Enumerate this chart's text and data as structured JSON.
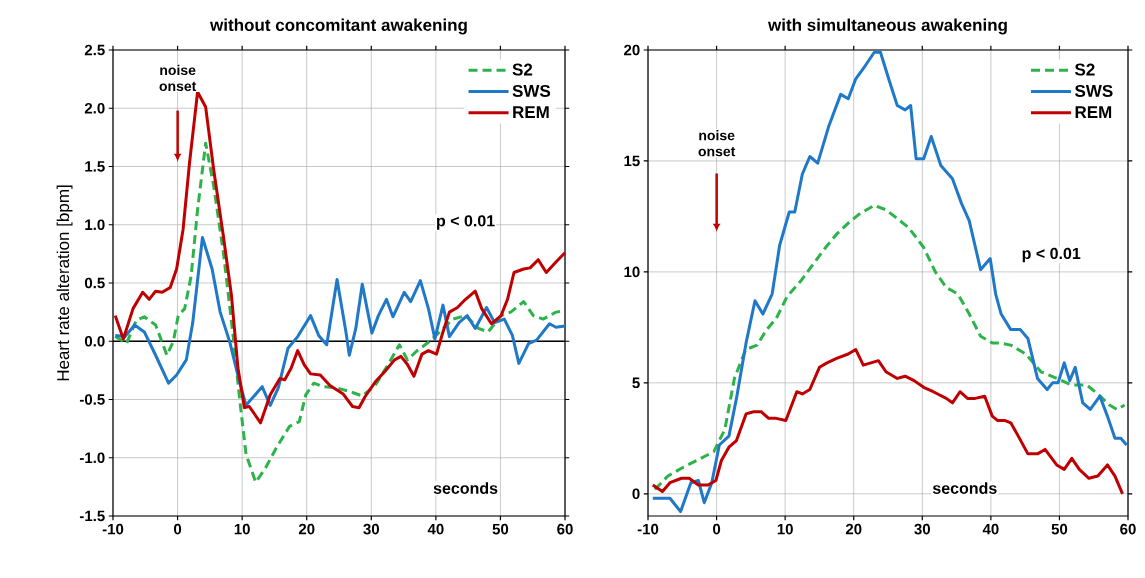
{
  "chart_data": [
    {
      "type": "line",
      "title": "without concomitant awakening",
      "ylabel": "Heart rate alteration [bpm]",
      "xlim": [
        -10,
        60
      ],
      "xticks": [
        -10,
        0,
        10,
        20,
        30,
        40,
        50,
        60
      ],
      "ylim": [
        -1.5,
        2.5
      ],
      "yticks": [
        {
          "value": -1.5,
          "label": "-1.5"
        },
        {
          "value": -1,
          "label": "-1.0"
        },
        {
          "value": -0.5,
          "label": "-0.5"
        },
        {
          "value": 0,
          "label": "0.0"
        },
        {
          "value": 0.5,
          "label": "0.5"
        },
        {
          "value": 1,
          "label": "1.0"
        },
        {
          "value": 1.5,
          "label": "1.5"
        },
        {
          "value": 2,
          "label": "2.0"
        },
        {
          "value": 2.5,
          "label": "2.5"
        }
      ],
      "grid": true,
      "legend": "top right",
      "marker": "none",
      "ref_lines": [
        {
          "axis": "y",
          "value": 0,
          "color": "#000000"
        }
      ],
      "annotations": [
        "noise onset",
        "p < 0.01",
        "seconds"
      ],
      "series": [
        {
          "name": "S2",
          "color": "#2db34a",
          "line_style": "dashed",
          "x": [
            -9.65,
            -7.9,
            -6.4,
            -5.15,
            -3.4,
            -1.65,
            -0.65,
            0.1,
            1.1,
            2.1,
            3.1,
            4.35,
            5.6,
            7.1,
            8.6,
            9.6,
            10.6,
            12.1,
            13.6,
            15.35,
            17.35,
            18.85,
            19.85,
            21.1,
            22.6,
            24.6,
            26.6,
            28.6,
            30.6,
            32.6,
            34.35,
            35.6,
            37.1,
            38.6,
            40.6,
            42.6,
            44.6,
            46.6,
            48.1,
            50.1,
            51.6,
            53.6,
            55.1,
            56.6,
            58.6,
            60
          ],
          "values": [
            0.04,
            -0.02,
            0.18,
            0.21,
            0.14,
            -0.12,
            0,
            0.22,
            0.28,
            0.56,
            1.13,
            1.7,
            1.33,
            0.76,
            0.05,
            -0.49,
            -0.97,
            -1.21,
            -1.09,
            -0.91,
            -0.73,
            -0.69,
            -0.46,
            -0.36,
            -0.39,
            -0.4,
            -0.43,
            -0.47,
            -0.38,
            -0.2,
            -0.03,
            -0.16,
            -0.08,
            -0.02,
            0.08,
            0.19,
            0.22,
            0.11,
            0.08,
            0.22,
            0.25,
            0.34,
            0.22,
            0.19,
            0.25,
            0.26
          ]
        },
        {
          "name": "SWS",
          "color": "#1f78c8",
          "line_style": "solid",
          "x": [
            -9.65,
            -8.15,
            -6.65,
            -5.15,
            -3.4,
            -1.4,
            -0.15,
            1.35,
            2.35,
            3.85,
            5.35,
            6.6,
            8.1,
            9.6,
            10.6,
            11.85,
            13.1,
            14.35,
            15.6,
            17.1,
            18.6,
            20.6,
            21.85,
            23.1,
            24.7,
            26.1,
            26.6,
            27.6,
            28.6,
            30.1,
            31.1,
            32.35,
            33.35,
            35.1,
            36.1,
            37.6,
            38.85,
            39.85,
            41.1,
            42.1,
            43.6,
            44.85,
            46.1,
            47.85,
            49.1,
            50.6,
            51.85,
            52.85,
            54.35,
            55.6,
            57.6,
            58.6,
            60
          ],
          "values": [
            0.05,
            0.04,
            0.14,
            0.08,
            -0.12,
            -0.36,
            -0.29,
            -0.16,
            0.16,
            0.89,
            0.62,
            0.25,
            -0.01,
            -0.35,
            -0.55,
            -0.47,
            -0.39,
            -0.55,
            -0.4,
            -0.06,
            0.04,
            0.22,
            0.05,
            -0.03,
            0.53,
            0.07,
            -0.12,
            0.11,
            0.49,
            0.07,
            0.22,
            0.36,
            0.21,
            0.42,
            0.34,
            0.52,
            0.28,
            0.02,
            0.31,
            0.04,
            0.16,
            0.22,
            0.11,
            0.29,
            0.16,
            0.19,
            0.05,
            -0.19,
            -0.02,
            0.01,
            0.15,
            0.12,
            0.13
          ]
        },
        {
          "name": "REM",
          "color": "#c00000",
          "line_style": "solid",
          "x": [
            -9.65,
            -8.4,
            -6.9,
            -5.4,
            -4.4,
            -3.4,
            -2.4,
            -1.15,
            -0.15,
            0.85,
            1.85,
            3.1,
            4.35,
            5.6,
            7.1,
            8.35,
            9.35,
            10.35,
            11.1,
            12.85,
            14.35,
            15.85,
            16.6,
            17.6,
            18.6,
            19.6,
            20.6,
            22.1,
            23.6,
            25.6,
            27.1,
            28.1,
            29.1,
            30.6,
            32.1,
            33.6,
            34.6,
            35.6,
            36.6,
            37.85,
            38.85,
            40.1,
            41.1,
            42.1,
            43.35,
            44.6,
            46.1,
            47.1,
            48.6,
            50.1,
            51.1,
            52.1,
            53.6,
            54.6,
            55.85,
            57.1,
            58.6,
            60
          ],
          "values": [
            0.22,
            0.02,
            0.28,
            0.42,
            0.36,
            0.43,
            0.42,
            0.46,
            0.62,
            0.96,
            1.53,
            2.14,
            2.01,
            1.47,
            0.9,
            0.39,
            -0.23,
            -0.57,
            -0.56,
            -0.7,
            -0.46,
            -0.32,
            -0.33,
            -0.23,
            -0.08,
            -0.2,
            -0.28,
            -0.29,
            -0.38,
            -0.45,
            -0.56,
            -0.57,
            -0.47,
            -0.35,
            -0.26,
            -0.16,
            -0.13,
            -0.2,
            -0.3,
            -0.11,
            -0.08,
            -0.11,
            0.08,
            0.25,
            0.29,
            0.36,
            0.43,
            0.28,
            0.15,
            0.22,
            0.36,
            0.59,
            0.62,
            0.63,
            0.7,
            0.59,
            0.68,
            0.76
          ]
        }
      ]
    },
    {
      "type": "line",
      "title": "with simultaneous awakening",
      "xlim": [
        -10,
        60
      ],
      "xticks": [
        -10,
        0,
        10,
        20,
        30,
        40,
        50,
        60
      ],
      "ylim": [
        -1,
        20
      ],
      "yticks": [
        0,
        5,
        10,
        15,
        20
      ],
      "grid": true,
      "legend": "top right",
      "marker": "none",
      "annotations": [
        "noise onset",
        "p < 0.01",
        "seconds"
      ],
      "series": [
        {
          "name": "S2",
          "color": "#2db34a",
          "line_style": "dashed",
          "x": [
            -9,
            -7.1,
            -4.85,
            -2.9,
            -0.4,
            1.2,
            2.6,
            4.25,
            5.9,
            7.3,
            8.7,
            10.3,
            12.3,
            14.2,
            15.9,
            17.5,
            19.2,
            20.8,
            23,
            24.7,
            26.35,
            28,
            30.2,
            31.9,
            33.5,
            35.2,
            36.85,
            38.5,
            40.2,
            41.3,
            42.9,
            45.1,
            47.3,
            49.6,
            51.8,
            54,
            55.6,
            57.3,
            58.4,
            59.5
          ],
          "values": [
            0.2,
            0.8,
            1.2,
            1.5,
            1.9,
            2.9,
            5.2,
            6.5,
            6.7,
            7.4,
            7.9,
            8.9,
            9.6,
            10.4,
            11.1,
            11.7,
            12.2,
            12.6,
            13,
            12.8,
            12.4,
            12,
            11.1,
            10,
            9.3,
            9,
            8.1,
            7.1,
            6.8,
            6.8,
            6.7,
            6.3,
            5.5,
            5.2,
            4.9,
            4.9,
            4.5,
            4,
            3.8,
            4
          ]
        },
        {
          "name": "SWS",
          "color": "#1f78c8",
          "line_style": "solid",
          "x": [
            -9.3,
            -6.8,
            -5.25,
            -3.75,
            -2.65,
            -1.8,
            -0.7,
            0.4,
            1.8,
            2.9,
            4.3,
            5.6,
            6.75,
            8.1,
            9.2,
            10.6,
            11.4,
            12.5,
            13.6,
            14.75,
            16.4,
            18.1,
            19.2,
            20.3,
            21.7,
            23,
            23.9,
            25.2,
            26.35,
            27.5,
            28.3,
            29.1,
            30.2,
            31.3,
            32.7,
            34.4,
            35.7,
            36.85,
            38.5,
            39.9,
            40.7,
            41.5,
            42.9,
            44.3,
            45.4,
            46.8,
            48.2,
            49,
            49.8,
            50.7,
            51.5,
            52.3,
            53.4,
            54.5,
            55.9,
            57,
            58.1,
            58.95,
            59.8
          ],
          "values": [
            -0.2,
            -0.2,
            -0.8,
            0.5,
            0.6,
            -0.4,
            0.5,
            2.2,
            2.6,
            4.3,
            6.8,
            8.7,
            8.1,
            9,
            11.2,
            12.7,
            12.7,
            14.4,
            15.2,
            14.9,
            16.6,
            18,
            17.8,
            18.7,
            19.3,
            19.9,
            19.9,
            18.6,
            17.5,
            17.3,
            17.5,
            15.1,
            15.1,
            16.1,
            14.8,
            14.2,
            13.1,
            12.3,
            10.1,
            10.6,
            9,
            8.1,
            7.4,
            7.4,
            7,
            5.2,
            4.7,
            5,
            5,
            5.9,
            5.1,
            5.7,
            4.1,
            3.8,
            4.4,
            3.5,
            2.5,
            2.5,
            2.2
          ]
        },
        {
          "name": "REM",
          "color": "#c00000",
          "line_style": "solid",
          "x": [
            -9.3,
            -7.9,
            -6.8,
            -5.1,
            -4,
            -2.65,
            -1.25,
            -0.1,
            0.7,
            1.8,
            2.9,
            4.3,
            5.4,
            6.5,
            7.6,
            8.7,
            10.1,
            11.7,
            12.5,
            13.6,
            15,
            16.1,
            17.5,
            19.2,
            20.3,
            21.4,
            22.5,
            23.6,
            24.7,
            26.35,
            27.5,
            28.8,
            30.2,
            31.6,
            33.5,
            34.4,
            35.5,
            36.6,
            37.7,
            39.1,
            40.2,
            41,
            42.1,
            42.9,
            44,
            45.4,
            46.8,
            47.9,
            49.6,
            50.7,
            51.8,
            52.9,
            54.3,
            55.6,
            57,
            58.1,
            59.2
          ],
          "values": [
            0.4,
            0.1,
            0.5,
            0.7,
            0.7,
            0.4,
            0.4,
            0.6,
            1.5,
            2.1,
            2.4,
            3.6,
            3.7,
            3.7,
            3.4,
            3.4,
            3.3,
            4.6,
            4.5,
            4.7,
            5.7,
            5.9,
            6.1,
            6.3,
            6.5,
            5.8,
            5.9,
            6,
            5.5,
            5.2,
            5.3,
            5.1,
            4.8,
            4.6,
            4.3,
            4.1,
            4.6,
            4.3,
            4.3,
            4.4,
            3.5,
            3.3,
            3.3,
            3.2,
            2.6,
            1.8,
            1.8,
            2,
            1.3,
            1.1,
            1.6,
            1.1,
            0.7,
            0.8,
            1.3,
            0.8,
            0
          ]
        }
      ]
    }
  ]
}
